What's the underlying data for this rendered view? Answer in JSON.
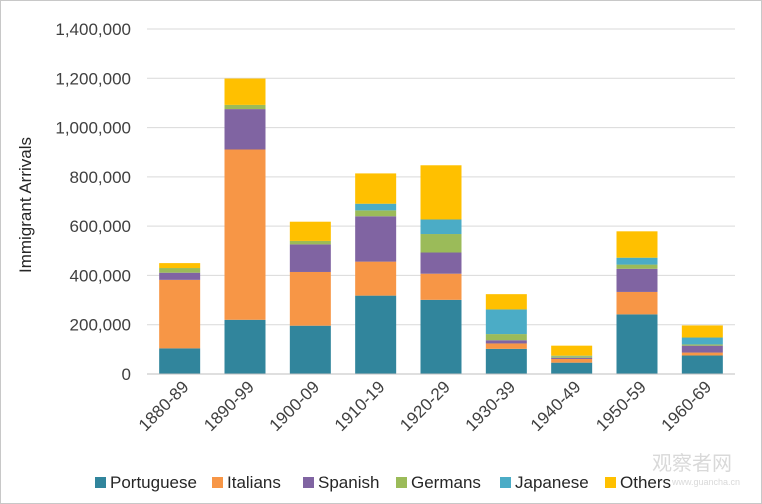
{
  "chart_data": {
    "type": "bar",
    "stacked": true,
    "title": "",
    "xlabel": "",
    "ylabel": "Immigrant Arrivals",
    "ylim": [
      0,
      1400000
    ],
    "yticks": [
      0,
      200000,
      400000,
      600000,
      800000,
      1000000,
      1200000,
      1400000
    ],
    "ytick_labels": [
      "0",
      "200,000",
      "400,000",
      "600,000",
      "800,000",
      "1,000,000",
      "1,200,000",
      "1,400,000"
    ],
    "grid": true,
    "legend_position": "bottom",
    "categories": [
      "1880-89",
      "1890-99",
      "1900-09",
      "1910-19",
      "1920-29",
      "1930-39",
      "1940-49",
      "1950-59",
      "1960-69"
    ],
    "series": [
      {
        "name": "Portuguese",
        "color": "#31859c",
        "values": [
          104000,
          220000,
          196000,
          318000,
          301000,
          102000,
          46000,
          242000,
          75000
        ]
      },
      {
        "name": "Italians",
        "color": "#f79646",
        "values": [
          278000,
          691000,
          218000,
          138000,
          106000,
          22000,
          15000,
          91000,
          12000
        ]
      },
      {
        "name": "Spanish",
        "color": "#8064a2",
        "values": [
          29000,
          164000,
          112000,
          184000,
          86000,
          13000,
          5000,
          94000,
          28000
        ]
      },
      {
        "name": "Germans",
        "color": "#9bbb59",
        "values": [
          19000,
          17000,
          14000,
          24000,
          75000,
          25000,
          6000,
          17000,
          5000
        ]
      },
      {
        "name": "Japanese",
        "color": "#4bacc6",
        "values": [
          0,
          0,
          0,
          27000,
          59000,
          100000,
          2000,
          28000,
          28000
        ]
      },
      {
        "name": "Others",
        "color": "#ffc000",
        "values": [
          20000,
          107000,
          78000,
          123000,
          220000,
          62000,
          41000,
          107000,
          49000
        ]
      }
    ]
  },
  "watermark": {
    "main": "观察者网",
    "sub": "www.guancha.cn"
  }
}
